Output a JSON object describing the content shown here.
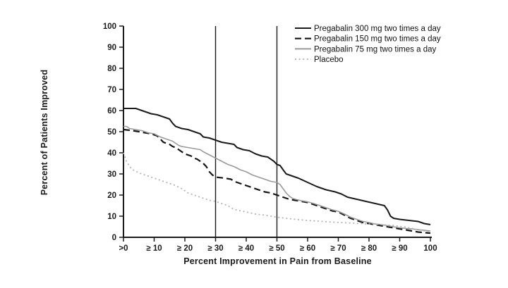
{
  "chart_data": {
    "type": "line",
    "title": "",
    "xlabel": "Percent Improvement in Pain from Baseline",
    "ylabel": "Percent of Patients Improved",
    "xlim": [
      0,
      100
    ],
    "ylim": [
      0,
      100
    ],
    "grid": false,
    "legend_position": "top-right",
    "axis_color": "#1a1a1a",
    "reference_lines_x": [
      30,
      50
    ],
    "x_ticks": [
      {
        "value": 0,
        "label": ">0"
      },
      {
        "value": 10,
        "label": "≥ 10"
      },
      {
        "value": 20,
        "label": "≥ 20"
      },
      {
        "value": 30,
        "label": "≥ 30"
      },
      {
        "value": 40,
        "label": "≥ 40"
      },
      {
        "value": 50,
        "label": "≥ 50"
      },
      {
        "value": 60,
        "label": "≥ 60"
      },
      {
        "value": 70,
        "label": "≥ 70"
      },
      {
        "value": 80,
        "label": "≥ 80"
      },
      {
        "value": 90,
        "label": "≥ 90"
      },
      {
        "value": 100,
        "label": "100"
      }
    ],
    "y_ticks": [
      0,
      10,
      20,
      30,
      40,
      50,
      60,
      70,
      80,
      90,
      100
    ],
    "series": [
      {
        "name": "Pregabalin 300 mg two times a day",
        "line_style": "solid",
        "color": "#1a1a1a",
        "stroke_width": 2,
        "points": [
          [
            0,
            61
          ],
          [
            4,
            61
          ],
          [
            5,
            60.5
          ],
          [
            7,
            59.5
          ],
          [
            9,
            58.5
          ],
          [
            11,
            58
          ],
          [
            13,
            57
          ],
          [
            15,
            56
          ],
          [
            16,
            54
          ],
          [
            17,
            52.5
          ],
          [
            19,
            51.5
          ],
          [
            21,
            51
          ],
          [
            23,
            50
          ],
          [
            25,
            49
          ],
          [
            26,
            47.5
          ],
          [
            28,
            47
          ],
          [
            30,
            46
          ],
          [
            32,
            45
          ],
          [
            34,
            44.5
          ],
          [
            36,
            44
          ],
          [
            37,
            42.5
          ],
          [
            39,
            41.5
          ],
          [
            41,
            41
          ],
          [
            43,
            39.5
          ],
          [
            45,
            38.5
          ],
          [
            47,
            38
          ],
          [
            48,
            37
          ],
          [
            49,
            36
          ],
          [
            50,
            34.5
          ],
          [
            51,
            34
          ],
          [
            52,
            32
          ],
          [
            53,
            30
          ],
          [
            55,
            29
          ],
          [
            57,
            28
          ],
          [
            60,
            26
          ],
          [
            63,
            24
          ],
          [
            66,
            22.5
          ],
          [
            69,
            21.5
          ],
          [
            71,
            20.5
          ],
          [
            73,
            19
          ],
          [
            76,
            18
          ],
          [
            79,
            17
          ],
          [
            82,
            16
          ],
          [
            85,
            15
          ],
          [
            86,
            13
          ],
          [
            87,
            10
          ],
          [
            88,
            9
          ],
          [
            90,
            8.5
          ],
          [
            93,
            8
          ],
          [
            96,
            7.5
          ],
          [
            98,
            6.5
          ],
          [
            100,
            6
          ]
        ]
      },
      {
        "name": "Pregabalin 150 mg two times a day",
        "line_style": "dashed",
        "color": "#141414",
        "stroke_width": 2.2,
        "points": [
          [
            0,
            51
          ],
          [
            3,
            50.5
          ],
          [
            5,
            50
          ],
          [
            7,
            49.5
          ],
          [
            9,
            49
          ],
          [
            11,
            48
          ],
          [
            12,
            46.5
          ],
          [
            13,
            45
          ],
          [
            14,
            44.5
          ],
          [
            15,
            44
          ],
          [
            16,
            43
          ],
          [
            17,
            42.5
          ],
          [
            18,
            41.5
          ],
          [
            19,
            40.5
          ],
          [
            20,
            39.5
          ],
          [
            22,
            38.5
          ],
          [
            23,
            37.5
          ],
          [
            24,
            37
          ],
          [
            25,
            36
          ],
          [
            26,
            35
          ],
          [
            27,
            33.5
          ],
          [
            28,
            31
          ],
          [
            29,
            29.5
          ],
          [
            30,
            28.5
          ],
          [
            33,
            28
          ],
          [
            35,
            27.5
          ],
          [
            36,
            26.5
          ],
          [
            38,
            25.5
          ],
          [
            40,
            24.5
          ],
          [
            42,
            23.5
          ],
          [
            44,
            22.5
          ],
          [
            46,
            21.5
          ],
          [
            48,
            21
          ],
          [
            50,
            20
          ],
          [
            52,
            19
          ],
          [
            54,
            18
          ],
          [
            56,
            17.5
          ],
          [
            58,
            17
          ],
          [
            60,
            16.5
          ],
          [
            62,
            15.5
          ],
          [
            64,
            14.5
          ],
          [
            66,
            13.5
          ],
          [
            68,
            12.5
          ],
          [
            70,
            12
          ],
          [
            72,
            10.5
          ],
          [
            74,
            9
          ],
          [
            76,
            8
          ],
          [
            78,
            7
          ],
          [
            80,
            6.5
          ],
          [
            82,
            6
          ],
          [
            84,
            5.5
          ],
          [
            86,
            5
          ],
          [
            88,
            4.5
          ],
          [
            90,
            4
          ],
          [
            92,
            3.5
          ],
          [
            94,
            3
          ],
          [
            96,
            2.5
          ],
          [
            98,
            2.2
          ],
          [
            100,
            2
          ]
        ]
      },
      {
        "name": "Pregabalin 75 mg two times a day",
        "line_style": "solid",
        "color": "#9a9a9a",
        "stroke_width": 1.6,
        "points": [
          [
            0,
            52.5
          ],
          [
            1,
            52.5
          ],
          [
            2,
            51.5
          ],
          [
            4,
            51
          ],
          [
            6,
            50.5
          ],
          [
            8,
            49.5
          ],
          [
            10,
            49
          ],
          [
            12,
            47.5
          ],
          [
            14,
            46.5
          ],
          [
            16,
            45.5
          ],
          [
            17,
            44.5
          ],
          [
            18,
            43.5
          ],
          [
            19,
            43
          ],
          [
            21,
            42.5
          ],
          [
            23,
            42
          ],
          [
            25,
            41.5
          ],
          [
            26,
            40.5
          ],
          [
            28,
            39
          ],
          [
            30,
            37.5
          ],
          [
            32,
            36
          ],
          [
            34,
            34.5
          ],
          [
            36,
            33.5
          ],
          [
            38,
            32
          ],
          [
            40,
            31
          ],
          [
            42,
            29.5
          ],
          [
            44,
            28.5
          ],
          [
            46,
            27.5
          ],
          [
            48,
            26.5
          ],
          [
            50,
            26
          ],
          [
            51,
            25
          ],
          [
            52,
            23
          ],
          [
            53,
            21
          ],
          [
            54,
            19.5
          ],
          [
            55,
            18.5
          ],
          [
            56,
            18
          ],
          [
            58,
            17.3
          ],
          [
            60,
            16.8
          ],
          [
            62,
            16
          ],
          [
            64,
            15
          ],
          [
            66,
            14
          ],
          [
            68,
            13
          ],
          [
            70,
            12.3
          ],
          [
            72,
            11
          ],
          [
            74,
            9.5
          ],
          [
            76,
            8.5
          ],
          [
            78,
            7.5
          ],
          [
            80,
            7
          ],
          [
            82,
            6.3
          ],
          [
            84,
            6
          ],
          [
            86,
            5.5
          ],
          [
            88,
            5
          ],
          [
            90,
            4.5
          ],
          [
            92,
            4.2
          ],
          [
            94,
            4
          ],
          [
            96,
            3.6
          ],
          [
            98,
            3.3
          ],
          [
            100,
            3
          ]
        ]
      },
      {
        "name": "Placebo",
        "line_style": "dotted",
        "color": "#b5b5b5",
        "stroke_width": 1.8,
        "points": [
          [
            0,
            40
          ],
          [
            1,
            36
          ],
          [
            2,
            33.5
          ],
          [
            3,
            32
          ],
          [
            5,
            30.5
          ],
          [
            7,
            29.5
          ],
          [
            9,
            28.5
          ],
          [
            11,
            27.5
          ],
          [
            13,
            26.5
          ],
          [
            15,
            25.5
          ],
          [
            17,
            24.5
          ],
          [
            19,
            23
          ],
          [
            20,
            22
          ],
          [
            21,
            21
          ],
          [
            22,
            20.5
          ],
          [
            24,
            19.5
          ],
          [
            26,
            18.5
          ],
          [
            28,
            17.5
          ],
          [
            30,
            17
          ],
          [
            32,
            16
          ],
          [
            34,
            15
          ],
          [
            35,
            14
          ],
          [
            36,
            13.2
          ],
          [
            38,
            12.6
          ],
          [
            40,
            12
          ],
          [
            43,
            11
          ],
          [
            46,
            10.5
          ],
          [
            48,
            10
          ],
          [
            50,
            9.5
          ],
          [
            53,
            9
          ],
          [
            56,
            8.5
          ],
          [
            60,
            8
          ],
          [
            64,
            7.6
          ],
          [
            68,
            7.2
          ],
          [
            72,
            6.9
          ],
          [
            76,
            6.6
          ],
          [
            80,
            6.3
          ],
          [
            84,
            6
          ],
          [
            88,
            5.6
          ],
          [
            90,
            5.2
          ],
          [
            92,
            4.8
          ],
          [
            94,
            4.2
          ],
          [
            96,
            3.6
          ],
          [
            98,
            3
          ],
          [
            100,
            2.5
          ]
        ]
      }
    ]
  }
}
